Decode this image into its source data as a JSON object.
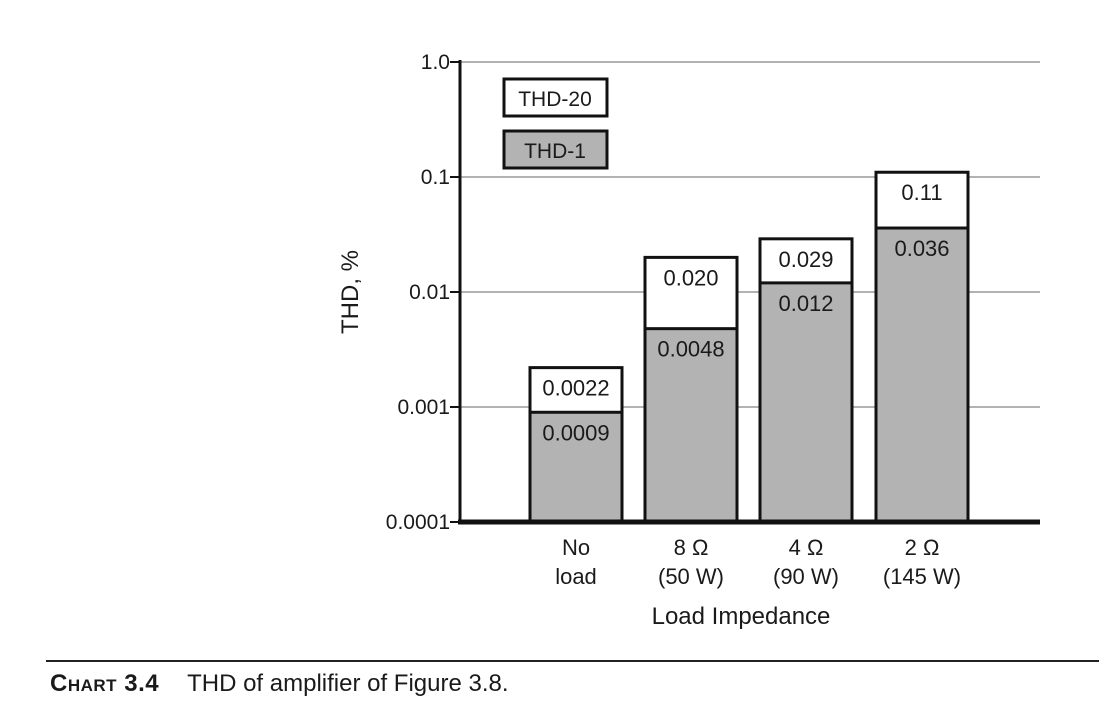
{
  "chart_data": {
    "type": "bar",
    "stacked_overlay": true,
    "y_scale": "log",
    "ylim": [
      0.0001,
      1.0
    ],
    "y_ticks": [
      "1.0",
      "0.1",
      "0.01",
      "0.001",
      "0.0001"
    ],
    "y_tick_values": [
      1.0,
      0.1,
      0.01,
      0.001,
      0.0001
    ],
    "ylabel": "THD, %",
    "xlabel": "Load Impedance",
    "grid": "horizontal",
    "categories": [
      [
        "No",
        "load"
      ],
      [
        "8 Ω",
        "(50 W)"
      ],
      [
        "4 Ω",
        "(90 W)"
      ],
      [
        "2 Ω",
        "(145 W)"
      ]
    ],
    "series": [
      {
        "name": "THD-20",
        "values": [
          0.0022,
          0.02,
          0.029,
          0.11
        ],
        "labels": [
          "0.0022",
          "0.020",
          "0.029",
          "0.11"
        ],
        "color": "#ffffff"
      },
      {
        "name": "THD-1",
        "values": [
          0.0009,
          0.0048,
          0.012,
          0.036
        ],
        "labels": [
          "0.0009",
          "0.0048",
          "0.012",
          "0.036"
        ],
        "color": "#b3b3b3"
      }
    ],
    "legend_position": "top-left"
  },
  "caption": {
    "prefix": "Chart 3.4",
    "text": "THD of amplifier of Figure 3.8."
  }
}
